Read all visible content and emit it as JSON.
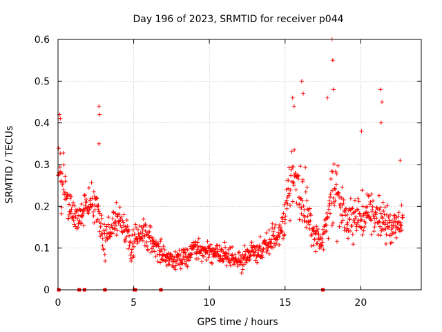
{
  "chart_data": {
    "type": "scatter",
    "title": "Day 196 of 2023, SRMTID for receiver p044",
    "xlabel": "GPS time / hours",
    "ylabel": "SRMTID / TECUs",
    "xlim": [
      0,
      24
    ],
    "ylim": [
      0,
      0.6
    ],
    "xticks": [
      0,
      5,
      10,
      15,
      20
    ],
    "yticks": [
      0,
      0.1,
      0.2,
      0.3,
      0.4,
      0.5,
      0.6
    ],
    "xtick_labels": [
      "0",
      "5",
      "10",
      "15",
      "20"
    ],
    "ytick_labels": [
      "0",
      "0.1",
      "0.2",
      "0.3",
      "0.4",
      "0.5",
      "0.6"
    ],
    "grid": true,
    "marker": "plus",
    "color": "#ff0000",
    "points_per_hour": 45,
    "envelope": [
      {
        "x": 0.0,
        "y": 0.28,
        "spread": 0.1
      },
      {
        "x": 0.3,
        "y": 0.26,
        "spread": 0.09
      },
      {
        "x": 0.7,
        "y": 0.2,
        "spread": 0.05
      },
      {
        "x": 1.2,
        "y": 0.17,
        "spread": 0.04
      },
      {
        "x": 1.8,
        "y": 0.2,
        "spread": 0.05
      },
      {
        "x": 2.5,
        "y": 0.21,
        "spread": 0.05
      },
      {
        "x": 3.0,
        "y": 0.12,
        "spread": 0.05
      },
      {
        "x": 3.5,
        "y": 0.15,
        "spread": 0.05
      },
      {
        "x": 4.2,
        "y": 0.17,
        "spread": 0.05
      },
      {
        "x": 4.8,
        "y": 0.11,
        "spread": 0.05
      },
      {
        "x": 5.5,
        "y": 0.14,
        "spread": 0.04
      },
      {
        "x": 6.2,
        "y": 0.12,
        "spread": 0.04
      },
      {
        "x": 7.0,
        "y": 0.08,
        "spread": 0.03
      },
      {
        "x": 8.0,
        "y": 0.07,
        "spread": 0.03
      },
      {
        "x": 9.0,
        "y": 0.1,
        "spread": 0.03
      },
      {
        "x": 10.0,
        "y": 0.09,
        "spread": 0.03
      },
      {
        "x": 11.0,
        "y": 0.09,
        "spread": 0.03
      },
      {
        "x": 12.0,
        "y": 0.07,
        "spread": 0.03
      },
      {
        "x": 13.0,
        "y": 0.09,
        "spread": 0.03
      },
      {
        "x": 14.0,
        "y": 0.11,
        "spread": 0.04
      },
      {
        "x": 14.8,
        "y": 0.15,
        "spread": 0.05
      },
      {
        "x": 15.4,
        "y": 0.26,
        "spread": 0.1
      },
      {
        "x": 16.0,
        "y": 0.24,
        "spread": 0.11
      },
      {
        "x": 16.8,
        "y": 0.14,
        "spread": 0.05
      },
      {
        "x": 17.5,
        "y": 0.12,
        "spread": 0.04
      },
      {
        "x": 18.2,
        "y": 0.25,
        "spread": 0.12
      },
      {
        "x": 19.0,
        "y": 0.17,
        "spread": 0.06
      },
      {
        "x": 20.0,
        "y": 0.17,
        "spread": 0.06
      },
      {
        "x": 21.0,
        "y": 0.19,
        "spread": 0.07
      },
      {
        "x": 22.0,
        "y": 0.15,
        "spread": 0.05
      },
      {
        "x": 22.8,
        "y": 0.17,
        "spread": 0.05
      }
    ],
    "spikes": [
      {
        "x": 0.1,
        "y": 0.42
      },
      {
        "x": 0.15,
        "y": 0.41
      },
      {
        "x": 2.7,
        "y": 0.44
      },
      {
        "x": 2.75,
        "y": 0.42
      },
      {
        "x": 2.7,
        "y": 0.35
      },
      {
        "x": 15.5,
        "y": 0.46
      },
      {
        "x": 15.6,
        "y": 0.44
      },
      {
        "x": 16.1,
        "y": 0.5
      },
      {
        "x": 16.2,
        "y": 0.47
      },
      {
        "x": 17.8,
        "y": 0.46
      },
      {
        "x": 18.1,
        "y": 0.6
      },
      {
        "x": 18.15,
        "y": 0.55
      },
      {
        "x": 18.2,
        "y": 0.48
      },
      {
        "x": 20.05,
        "y": 0.38
      },
      {
        "x": 21.3,
        "y": 0.48
      },
      {
        "x": 21.4,
        "y": 0.45
      },
      {
        "x": 21.35,
        "y": 0.4
      },
      {
        "x": 22.6,
        "y": 0.31
      }
    ],
    "baseline_markers": [
      0.05,
      1.4,
      1.75,
      3.1,
      5.05,
      5.1,
      6.8,
      17.5
    ],
    "baseline_marker_y": 0
  }
}
